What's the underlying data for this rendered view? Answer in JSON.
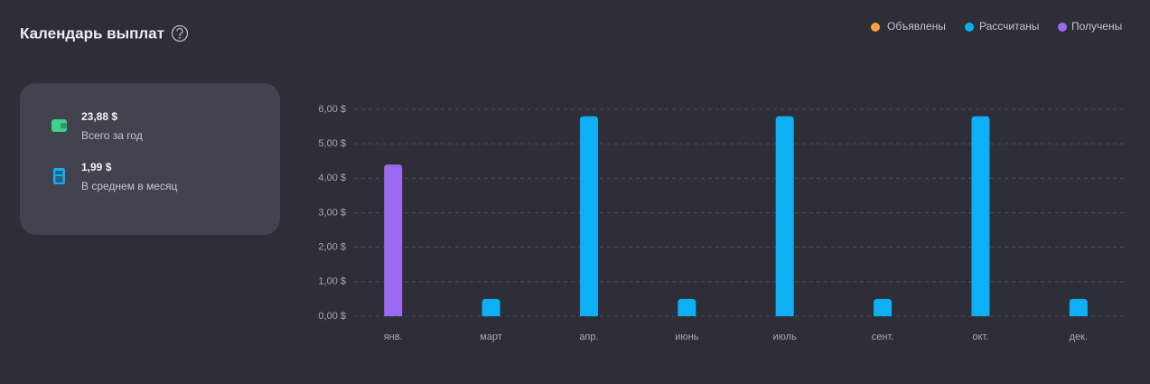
{
  "header": {
    "title": "Календарь выплат"
  },
  "summary": [
    {
      "value": "23,88 $",
      "label": "Всего за год"
    },
    {
      "value": "1,99 $",
      "label": "В среднем в месяц"
    }
  ],
  "chart_data": {
    "type": "bar",
    "stacked": true,
    "categories": [
      "янв.",
      "март",
      "апр.",
      "июнь",
      "июль",
      "сент.",
      "окт.",
      "дек."
    ],
    "series": [
      {
        "name": "Объявлены",
        "color": "#f4a340",
        "values": [
          null,
          null,
          null,
          null,
          null,
          null,
          null,
          null
        ]
      },
      {
        "name": "Рассчитаны",
        "color": "#0db0f5",
        "values": [
          null,
          0.5,
          5.8,
          0.5,
          5.8,
          0.5,
          5.8,
          0.5
        ]
      },
      {
        "name": "Получены",
        "color": "#9b6af0",
        "values": [
          4.4,
          null,
          null,
          null,
          null,
          null,
          null,
          null
        ]
      }
    ],
    "ylim": [
      0,
      6
    ],
    "yticks": [
      {
        "value": 0,
        "label": "0,00 $"
      },
      {
        "value": 1,
        "label": "1,00 $"
      },
      {
        "value": 2,
        "label": "2,00 $"
      },
      {
        "value": 3,
        "label": "3,00 $"
      },
      {
        "value": 4,
        "label": "4,00 $"
      },
      {
        "value": 5,
        "label": "5,00 $"
      },
      {
        "value": 6,
        "label": "6,00 $"
      }
    ],
    "grid": true,
    "legend": "top-right"
  }
}
